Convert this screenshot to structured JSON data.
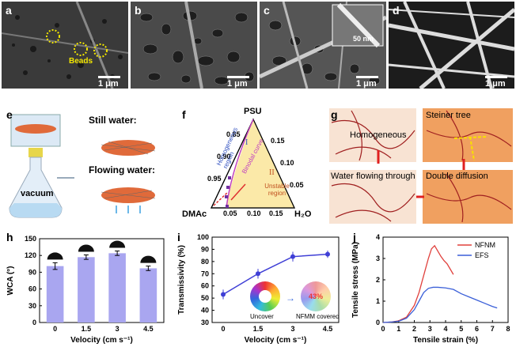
{
  "panels": {
    "a": {
      "label": "a",
      "scale": "1 μm",
      "annotation": "Beads"
    },
    "b": {
      "label": "b",
      "scale": "1 μm"
    },
    "c": {
      "label": "c",
      "scale": "1 μm",
      "inset_scale": "50 nm"
    },
    "d": {
      "label": "d",
      "scale": "1 μm"
    },
    "e": {
      "label": "e",
      "still_water": "Still water:",
      "flowing_water": "Flowing water:",
      "vacuum": "vacuum"
    },
    "f": {
      "label": "f",
      "apex_top": "PSU",
      "apex_left": "DMAc",
      "apex_right": "H₂O",
      "left_ticks": [
        "0.85",
        "0.90",
        "0.95"
      ],
      "right_ticks": [
        "0.15",
        "0.10",
        "0.05"
      ],
      "bottom_ticks": [
        "0.05",
        "0.10",
        "0.15"
      ],
      "region_I": "I",
      "region_II": "II",
      "homogeneous_region": "Homogeneous region",
      "binodal_curve": "Binodal curve",
      "unstable_region": "Unstable region"
    },
    "g": {
      "label": "g",
      "homogeneous": "Homogeneous",
      "steiner_tree": "Steiner tree",
      "water_flowing": "Water flowing through",
      "double_diffusion": "Double diffusion"
    },
    "h": {
      "label": "h"
    },
    "i": {
      "label": "i",
      "uncover": "Uncover",
      "covered": "NFMM covered",
      "covered_value": "43%"
    },
    "j": {
      "label": "j"
    }
  },
  "chart_data": [
    {
      "id": "h",
      "type": "bar",
      "categories": [
        "0",
        "1.5",
        "3",
        "4.5"
      ],
      "values": [
        101,
        117,
        124,
        97
      ],
      "errors": [
        6,
        4,
        4,
        4
      ],
      "xlabel": "Velocity (cm s⁻¹)",
      "ylabel": "WCA (°)",
      "ylim": [
        0,
        150
      ],
      "yticks": [
        0,
        30,
        60,
        90,
        120,
        150
      ],
      "bar_color": "#a9a6f0",
      "grid": false
    },
    {
      "id": "i",
      "type": "line",
      "x": [
        0,
        1.5,
        3,
        4.5
      ],
      "values": [
        53,
        70,
        84,
        86
      ],
      "errors": [
        4,
        4,
        4,
        3
      ],
      "xlabel": "Velocity (cm s⁻¹)",
      "ylabel": "Transmissivity (%)",
      "xticks": [
        "0",
        "1.5",
        "3",
        "4.5"
      ],
      "ylim": [
        30,
        100
      ],
      "yticks": [
        30,
        40,
        50,
        60,
        70,
        80,
        90,
        100
      ],
      "color": "#3f3fd6",
      "grid": false
    },
    {
      "id": "j",
      "type": "line",
      "xlabel": "Tensile strain (%)",
      "ylabel": "Tensile stress (MPa)",
      "xlim": [
        0,
        8
      ],
      "ylim": [
        0,
        4
      ],
      "xticks": [
        0,
        1,
        2,
        3,
        4,
        5,
        6,
        7,
        8
      ],
      "yticks": [
        0,
        1,
        2,
        3,
        4
      ],
      "legend_position": "top-right",
      "series": [
        {
          "name": "NFNM",
          "color": "#e0403c",
          "x": [
            0,
            0.5,
            1,
            1.5,
            2,
            2.3,
            2.6,
            2.9,
            3.1,
            3.3,
            3.5,
            3.7,
            3.9,
            4.1,
            4.3,
            4.5
          ],
          "y": [
            0,
            0.02,
            0.08,
            0.25,
            0.8,
            1.4,
            2.2,
            3.0,
            3.45,
            3.6,
            3.35,
            3.1,
            2.9,
            2.75,
            2.5,
            2.25
          ]
        },
        {
          "name": "EFS",
          "color": "#3a5fd8",
          "x": [
            0,
            0.5,
            1,
            1.5,
            2,
            2.3,
            2.6,
            2.9,
            3.2,
            3.5,
            4,
            4.5,
            5,
            5.5,
            6,
            6.5,
            7,
            7.3
          ],
          "y": [
            0,
            0.02,
            0.06,
            0.2,
            0.6,
            1.0,
            1.4,
            1.6,
            1.65,
            1.65,
            1.62,
            1.55,
            1.35,
            1.2,
            1.05,
            0.9,
            0.75,
            0.68
          ]
        }
      ]
    }
  ]
}
